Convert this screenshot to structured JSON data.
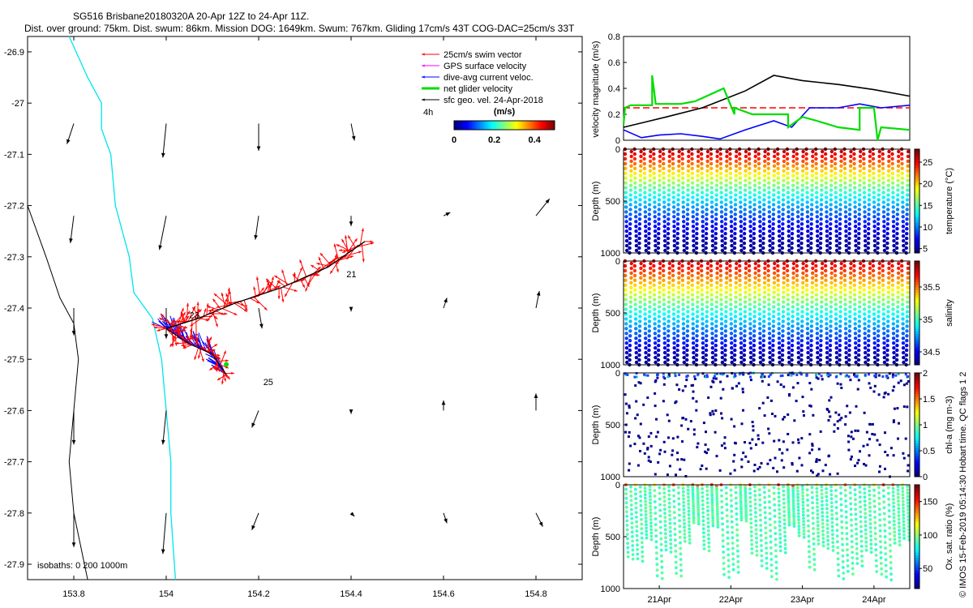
{
  "header": {
    "line1": "SG516 Brisbane20180320A 20-Apr 12Z to 24-Apr 11Z.",
    "line2": "Dist. over ground: 75km. Dist. swum: 86km. Mission DOG: 1649km. Swum: 767km. Gliding 17cm/s 43T COG-DAC=25cm/s 33T"
  },
  "side_note": "© IMOS 15-Feb-2019 05:14:30 Hobart time. QC flags 1 2",
  "colors": {
    "swim": "#ff0000",
    "gps": "#ff00ff",
    "dac": "#0000ff",
    "net": "#00dd00",
    "geo": "#000000",
    "coast": "#00e5ee",
    "isobath": "#000000",
    "ref": "#ff0000"
  },
  "chart_data": [
    {
      "type": "map",
      "xlim": [
        153.7,
        154.9
      ],
      "ylim": [
        -27.93,
        -26.87
      ],
      "xticks": [
        "153.8",
        "154",
        "154.2",
        "154.4",
        "154.6",
        "154.8"
      ],
      "xtick_values": [
        153.8,
        154.0,
        154.2,
        154.4,
        154.6,
        154.8
      ],
      "yticks": [
        "-26.9",
        "-27",
        "-27.1",
        "-27.2",
        "-27.3",
        "-27.4",
        "-27.5",
        "-27.6",
        "-27.7",
        "-27.8",
        "-27.9"
      ],
      "ytick_values": [
        -26.9,
        -27.0,
        -27.1,
        -27.2,
        -27.3,
        -27.4,
        -27.5,
        -27.6,
        -27.7,
        -27.8,
        -27.9
      ],
      "legend": [
        {
          "label": "25cm/s swim vector",
          "color": "#ff0000"
        },
        {
          "label": "GPS surface velocity",
          "color": "#ff00ff"
        },
        {
          "label": "dive-avg current veloc.",
          "color": "#0000ff"
        },
        {
          "label": "net glider velocity",
          "color": "#00dd00"
        },
        {
          "label": "sfc geo. vel. 24-Apr-2018",
          "color": "#000000"
        }
      ],
      "legend_extra": "4h",
      "colorbar": {
        "title": "(m/s)",
        "ticks": [
          "0",
          "0.2",
          "0.4"
        ],
        "tick_values": [
          0,
          0.2,
          0.4
        ],
        "range": [
          0,
          0.5
        ]
      },
      "isobath_label": "isobaths: 0   200  1000m",
      "day_labels": [
        {
          "text": "21",
          "lon": 154.39,
          "lat": -27.34
        },
        {
          "text": "23",
          "lon": 154.05,
          "lat": -27.42
        },
        {
          "text": "25",
          "lon": 154.21,
          "lat": -27.55
        }
      ],
      "track": [
        [
          154.43,
          -27.27
        ],
        [
          154.35,
          -27.32
        ],
        [
          154.25,
          -27.36
        ],
        [
          154.15,
          -27.39
        ],
        [
          154.07,
          -27.42
        ],
        [
          154.0,
          -27.44
        ]
      ],
      "track2": [
        [
          154.0,
          -27.44
        ],
        [
          154.05,
          -27.47
        ],
        [
          154.1,
          -27.49
        ],
        [
          154.13,
          -27.53
        ]
      ],
      "coast": [
        [
          153.79,
          -26.87
        ],
        [
          153.83,
          -26.95
        ],
        [
          153.86,
          -27.0
        ],
        [
          153.86,
          -27.05
        ],
        [
          153.88,
          -27.1
        ],
        [
          153.89,
          -27.2
        ],
        [
          153.92,
          -27.3
        ],
        [
          153.93,
          -27.37
        ],
        [
          153.97,
          -27.42
        ],
        [
          153.99,
          -27.5
        ],
        [
          154.0,
          -27.6
        ],
        [
          154.01,
          -27.7
        ],
        [
          154.01,
          -27.8
        ],
        [
          154.02,
          -27.93
        ]
      ],
      "isobath": [
        [
          153.7,
          -27.2
        ],
        [
          153.74,
          -27.3
        ],
        [
          153.77,
          -27.38
        ],
        [
          153.8,
          -27.43
        ],
        [
          153.81,
          -27.5
        ],
        [
          153.8,
          -27.6
        ],
        [
          153.79,
          -27.7
        ],
        [
          153.8,
          -27.8
        ],
        [
          153.83,
          -27.93
        ]
      ],
      "geo_vectors": [
        {
          "lon": 153.8,
          "lat": -27.04,
          "u": -0.02,
          "v": -0.06
        },
        {
          "lon": 154.0,
          "lat": -27.04,
          "u": -0.01,
          "v": -0.1
        },
        {
          "lon": 154.2,
          "lat": -27.04,
          "u": 0.0,
          "v": -0.08
        },
        {
          "lon": 154.4,
          "lat": -27.04,
          "u": 0.01,
          "v": -0.05
        },
        {
          "lon": 153.8,
          "lat": -27.22,
          "u": -0.01,
          "v": -0.08
        },
        {
          "lon": 154.0,
          "lat": -27.22,
          "u": -0.02,
          "v": -0.1
        },
        {
          "lon": 154.2,
          "lat": -27.22,
          "u": -0.01,
          "v": -0.07
        },
        {
          "lon": 154.4,
          "lat": -27.22,
          "u": 0.0,
          "v": -0.03
        },
        {
          "lon": 154.6,
          "lat": -27.22,
          "u": 0.02,
          "v": 0.01
        },
        {
          "lon": 154.8,
          "lat": -27.22,
          "u": 0.04,
          "v": 0.05
        },
        {
          "lon": 153.8,
          "lat": -27.4,
          "u": 0.0,
          "v": -0.08
        },
        {
          "lon": 154.0,
          "lat": -27.4,
          "u": 0.0,
          "v": -0.09
        },
        {
          "lon": 154.2,
          "lat": -27.4,
          "u": 0.01,
          "v": -0.06
        },
        {
          "lon": 154.4,
          "lat": -27.4,
          "u": 0.0,
          "v": -0.01
        },
        {
          "lon": 154.6,
          "lat": -27.4,
          "u": 0.01,
          "v": 0.03
        },
        {
          "lon": 154.8,
          "lat": -27.4,
          "u": 0.01,
          "v": 0.05
        },
        {
          "lon": 153.8,
          "lat": -27.6,
          "u": 0.0,
          "v": -0.1
        },
        {
          "lon": 154.0,
          "lat": -27.6,
          "u": -0.01,
          "v": -0.1
        },
        {
          "lon": 154.2,
          "lat": -27.6,
          "u": -0.02,
          "v": -0.05
        },
        {
          "lon": 154.4,
          "lat": -27.6,
          "u": 0.0,
          "v": -0.01
        },
        {
          "lon": 154.6,
          "lat": -27.6,
          "u": 0.0,
          "v": 0.03
        },
        {
          "lon": 154.8,
          "lat": -27.6,
          "u": 0.0,
          "v": 0.05
        },
        {
          "lon": 153.8,
          "lat": -27.8,
          "u": 0.0,
          "v": -0.1
        },
        {
          "lon": 154.0,
          "lat": -27.8,
          "u": -0.01,
          "v": -0.12
        },
        {
          "lon": 154.2,
          "lat": -27.8,
          "u": -0.02,
          "v": -0.05
        },
        {
          "lon": 154.4,
          "lat": -27.8,
          "u": 0.01,
          "v": -0.01
        },
        {
          "lon": 154.6,
          "lat": -27.8,
          "u": 0.01,
          "v": -0.03
        },
        {
          "lon": 154.8,
          "lat": -27.8,
          "u": 0.02,
          "v": -0.04
        }
      ]
    },
    {
      "type": "line",
      "ylabel": "velocity magnitude (m/s)",
      "ylim": [
        0,
        0.8
      ],
      "yticks": [
        "0",
        "0.2",
        "0.4",
        "0.6",
        "0.8"
      ],
      "ytick_values": [
        0,
        0.2,
        0.4,
        0.6,
        0.8
      ],
      "xlim": [
        20.5,
        24.5
      ],
      "series": [
        {
          "name": "reference 25cm/s",
          "color": "#ff0000",
          "dashed": true,
          "x": [
            20.5,
            24.5
          ],
          "y": [
            0.25,
            0.25
          ]
        },
        {
          "name": "GPS speed",
          "color": "#000000",
          "x": [
            20.5,
            20.8,
            21.1,
            21.6,
            22.2,
            22.6,
            23.0,
            23.5,
            24.0,
            24.5
          ],
          "y": [
            0.1,
            0.14,
            0.18,
            0.25,
            0.38,
            0.5,
            0.46,
            0.43,
            0.39,
            0.34
          ]
        },
        {
          "name": "DAC speed",
          "color": "#0000ff",
          "x": [
            20.5,
            20.75,
            21.0,
            21.3,
            21.6,
            21.85,
            22.2,
            22.6,
            22.85,
            23.1,
            23.5,
            23.8,
            24.1,
            24.5
          ],
          "y": [
            0.08,
            0.02,
            0.04,
            0.05,
            0.03,
            0.01,
            0.08,
            0.15,
            0.1,
            0.25,
            0.25,
            0.28,
            0.25,
            0.27
          ]
        },
        {
          "name": "net glider speed",
          "color": "#00dd00",
          "x": [
            20.5,
            20.52,
            20.6,
            20.9,
            20.9,
            20.95,
            21.3,
            21.5,
            21.9,
            21.9,
            22.05,
            22.05,
            22.3,
            22.8,
            22.8,
            23.0,
            23.2,
            23.5,
            23.8,
            23.8,
            24.0,
            24.05,
            24.1,
            24.5
          ],
          "y": [
            0.12,
            0.25,
            0.27,
            0.27,
            0.5,
            0.28,
            0.28,
            0.3,
            0.4,
            0.4,
            0.2,
            0.25,
            0.2,
            0.2,
            0.1,
            0.18,
            0.15,
            0.1,
            0.08,
            0.25,
            0.25,
            0.0,
            0.1,
            0.08
          ]
        }
      ]
    },
    {
      "type": "scatter",
      "ylabel": "Depth (m)",
      "colorbar_label": "temperature (°C)",
      "clim": [
        4,
        28
      ],
      "cticks": [
        "5",
        "10",
        "15",
        "20",
        "25"
      ],
      "ctick_values": [
        5,
        10,
        15,
        20,
        25
      ],
      "yticks": [
        "0",
        "500",
        "1000"
      ],
      "ytick_values": [
        0,
        500,
        1000
      ],
      "ylim": [
        0,
        1000
      ],
      "xlim": [
        20.5,
        24.5
      ],
      "profiles": 30,
      "surface_value": 27,
      "deep_value": 4.5
    },
    {
      "type": "scatter",
      "ylabel": "Depth (m)",
      "colorbar_label": "salinity",
      "clim": [
        34.3,
        35.9
      ],
      "cticks": [
        "34.5",
        "35",
        "35.5"
      ],
      "ctick_values": [
        34.5,
        35,
        35.5
      ],
      "yticks": [
        "0",
        "500",
        "1000"
      ],
      "ytick_values": [
        0,
        500,
        1000
      ],
      "ylim": [
        0,
        1000
      ],
      "xlim": [
        20.5,
        24.5
      ],
      "profiles": 30
    },
    {
      "type": "scatter",
      "ylabel": "Depth (m)",
      "colorbar_label": "chl-a (mg m-3)",
      "clim": [
        0,
        2
      ],
      "cticks": [
        "0",
        "0.5",
        "1",
        "1.5",
        "2"
      ],
      "ctick_values": [
        0,
        0.5,
        1,
        1.5,
        2
      ],
      "yticks": [
        "0",
        "500",
        "1000"
      ],
      "ytick_values": [
        0,
        500,
        1000
      ],
      "ylim": [
        0,
        1000
      ],
      "xlim": [
        20.5,
        24.5
      ],
      "profiles": 30
    },
    {
      "type": "scatter",
      "ylabel": "Depth (m)",
      "colorbar_label": "Ox. sat. ratio (%)",
      "clim": [
        20,
        175
      ],
      "cticks": [
        "50",
        "100",
        "150"
      ],
      "ctick_values": [
        50,
        100,
        150
      ],
      "yticks": [
        "0",
        "500",
        "1000"
      ],
      "ytick_values": [
        0,
        500,
        1000
      ],
      "ylim": [
        0,
        1000
      ],
      "xlim": [
        20.5,
        24.5
      ],
      "xticks": [
        "21Apr",
        "22Apr",
        "23Apr",
        "24Apr"
      ],
      "xtick_values": [
        21,
        22,
        23,
        24
      ],
      "profiles": 30
    }
  ]
}
